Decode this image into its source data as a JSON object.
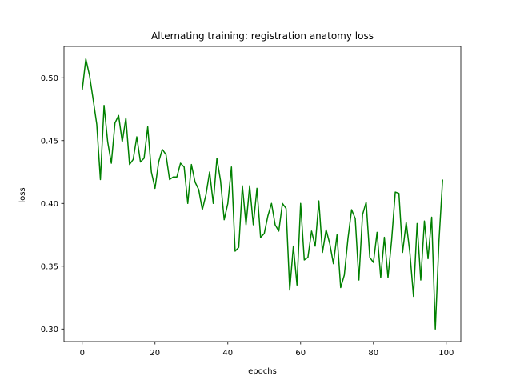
{
  "chart_data": {
    "type": "line",
    "title": "Alternating training: registration anatomy loss",
    "xlabel": "epochs",
    "ylabel": "loss",
    "xlim": [
      -5,
      104
    ],
    "ylim": [
      0.29,
      0.525
    ],
    "xticks": [
      0,
      20,
      40,
      60,
      80,
      100
    ],
    "yticks": [
      0.3,
      0.35,
      0.4,
      0.45,
      0.5
    ],
    "ytick_labels": [
      "0.30",
      "0.35",
      "0.40",
      "0.45",
      "0.50"
    ],
    "grid": false,
    "legend": "none",
    "series": [
      {
        "color": "#008000",
        "x": [
          0,
          1,
          2,
          3,
          4,
          5,
          6,
          7,
          8,
          9,
          10,
          11,
          12,
          13,
          14,
          15,
          16,
          17,
          18,
          19,
          20,
          21,
          22,
          23,
          24,
          25,
          26,
          27,
          28,
          29,
          30,
          31,
          32,
          33,
          34,
          35,
          36,
          37,
          38,
          39,
          40,
          41,
          42,
          43,
          44,
          45,
          46,
          47,
          48,
          49,
          50,
          51,
          52,
          53,
          54,
          55,
          56,
          57,
          58,
          59,
          60,
          61,
          62,
          63,
          64,
          65,
          66,
          67,
          68,
          69,
          70,
          71,
          72,
          73,
          74,
          75,
          76,
          77,
          78,
          79,
          80,
          81,
          82,
          83,
          84,
          85,
          86,
          87,
          88,
          89,
          90,
          91,
          92,
          93,
          94,
          95,
          96,
          97,
          98,
          99
        ],
        "values": [
          0.49,
          0.515,
          0.502,
          0.483,
          0.463,
          0.419,
          0.478,
          0.449,
          0.432,
          0.464,
          0.47,
          0.449,
          0.468,
          0.431,
          0.435,
          0.453,
          0.433,
          0.436,
          0.461,
          0.425,
          0.412,
          0.433,
          0.443,
          0.439,
          0.419,
          0.421,
          0.421,
          0.432,
          0.429,
          0.4,
          0.431,
          0.417,
          0.411,
          0.395,
          0.407,
          0.425,
          0.4,
          0.436,
          0.418,
          0.387,
          0.4,
          0.429,
          0.362,
          0.365,
          0.414,
          0.383,
          0.414,
          0.383,
          0.412,
          0.373,
          0.376,
          0.39,
          0.4,
          0.383,
          0.378,
          0.4,
          0.396,
          0.331,
          0.366,
          0.335,
          0.4,
          0.355,
          0.357,
          0.378,
          0.366,
          0.402,
          0.361,
          0.379,
          0.368,
          0.352,
          0.375,
          0.333,
          0.343,
          0.372,
          0.395,
          0.388,
          0.339,
          0.391,
          0.401,
          0.357,
          0.353,
          0.377,
          0.341,
          0.373,
          0.341,
          0.371,
          0.409,
          0.408,
          0.361,
          0.385,
          0.361,
          0.326,
          0.384,
          0.339,
          0.386,
          0.356,
          0.389,
          0.3,
          0.37,
          0.419
        ]
      }
    ]
  }
}
